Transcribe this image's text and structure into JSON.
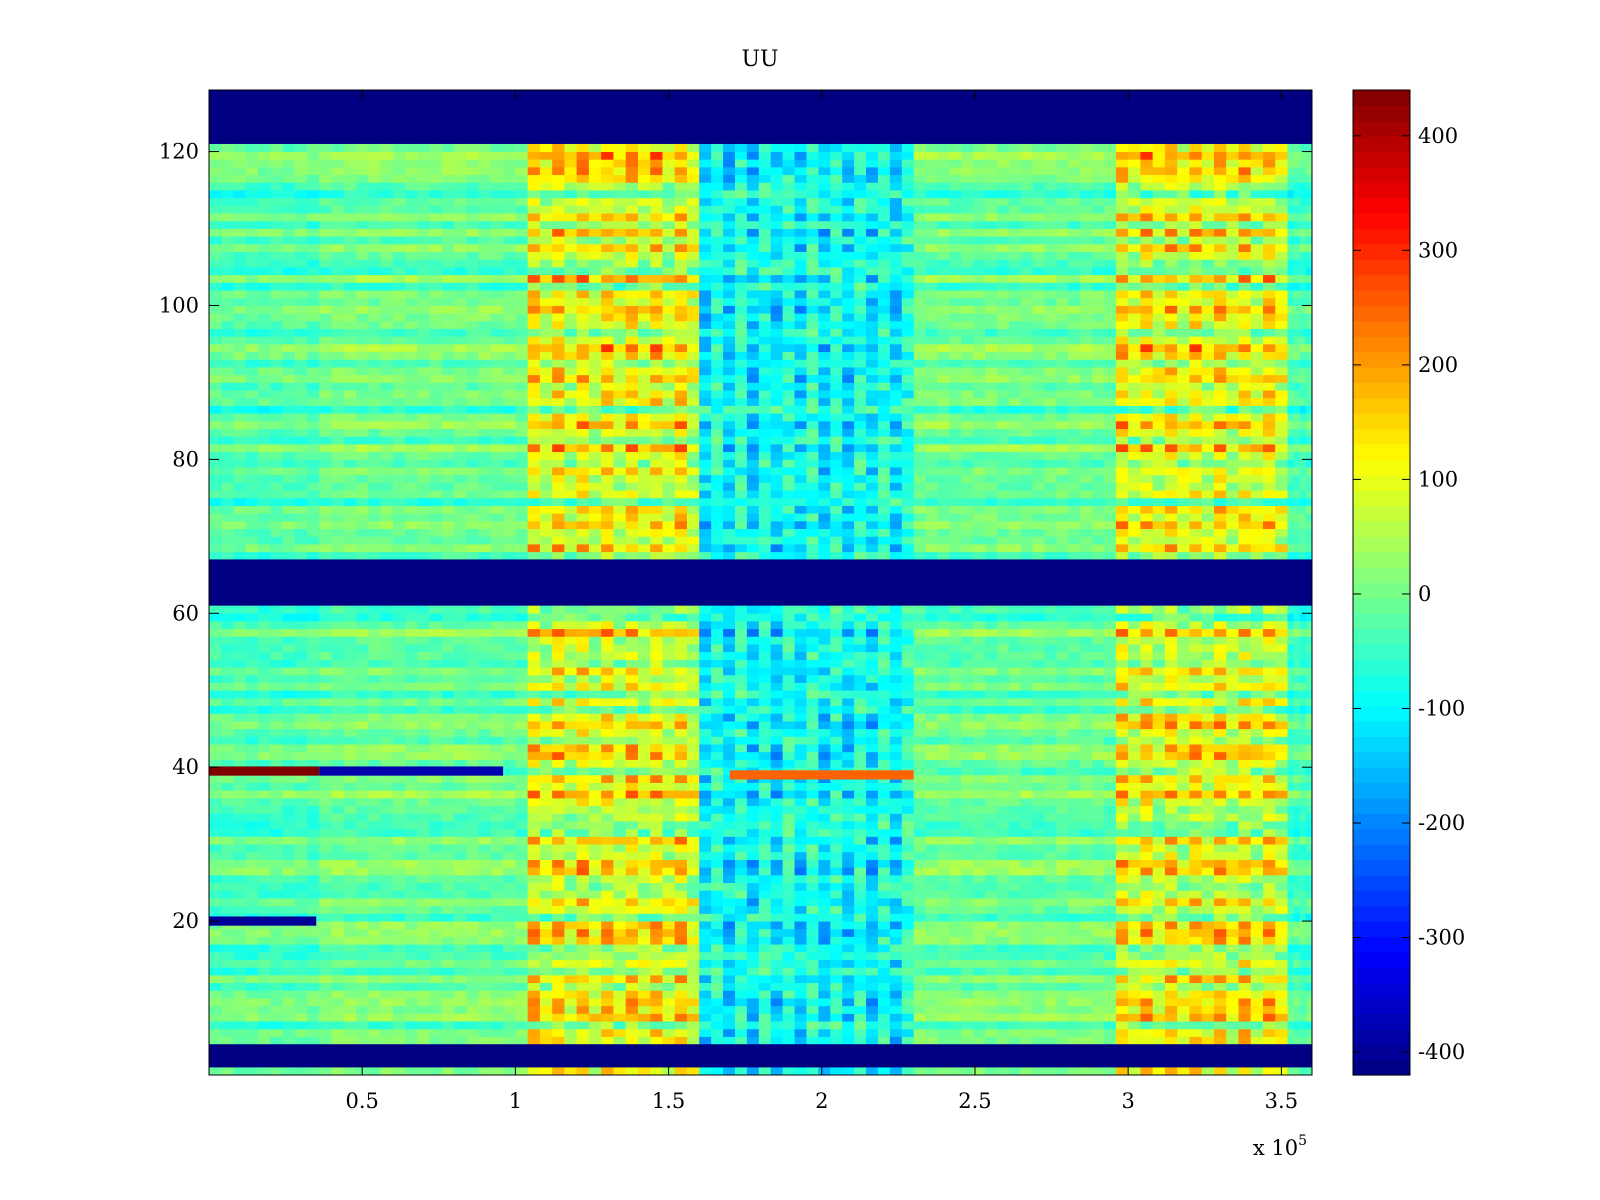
{
  "chart_data": {
    "type": "heatmap",
    "title": "UU",
    "xlabel": "",
    "ylabel": "",
    "xlim": [
      0,
      360000
    ],
    "ylim": [
      0,
      128
    ],
    "x_ticks": [
      50000,
      100000,
      150000,
      200000,
      250000,
      300000,
      350000
    ],
    "x_tick_labels": [
      "0.5",
      "1",
      "1.5",
      "2",
      "2.5",
      "3",
      "3.5"
    ],
    "x_exponent_base": "x 10",
    "x_exponent_power": "5",
    "y_ticks": [
      20,
      40,
      60,
      80,
      100,
      120
    ],
    "y_tick_labels": [
      "20",
      "40",
      "60",
      "80",
      "100",
      "120"
    ],
    "colorbar": {
      "colormap": "jet",
      "clim": [
        -420,
        440
      ],
      "ticks": [
        400,
        300,
        200,
        100,
        0,
        -100,
        -200,
        -300,
        -400
      ],
      "tick_labels": [
        "400",
        "300",
        "200",
        "100",
        "0",
        "-100",
        "-200",
        "-300",
        "-400"
      ]
    },
    "empty_rows": [
      [
        1,
        4
      ],
      [
        61,
        67
      ],
      [
        121,
        128
      ]
    ],
    "regions": [
      {
        "x": [
          0,
          36000
        ],
        "value": -30
      },
      {
        "x": [
          36000,
          104000
        ],
        "value": -10
      },
      {
        "x": [
          104000,
          160000
        ],
        "value": 180
      },
      {
        "x": [
          160000,
          230000
        ],
        "value": -190
      },
      {
        "x": [
          230000,
          296000
        ],
        "value": -10
      },
      {
        "x": [
          296000,
          352000
        ],
        "value": 180
      },
      {
        "x": [
          352000,
          360000
        ],
        "value": -40
      }
    ],
    "features": [
      {
        "y": 39.5,
        "x": [
          0,
          36000
        ],
        "value": 440
      },
      {
        "y": 39.5,
        "x": [
          36000,
          96000
        ],
        "value": -380
      },
      {
        "y": 39,
        "x": [
          170000,
          230000
        ],
        "value": 250
      },
      {
        "y": 20,
        "x": [
          0,
          35000
        ],
        "value": -400
      }
    ]
  }
}
